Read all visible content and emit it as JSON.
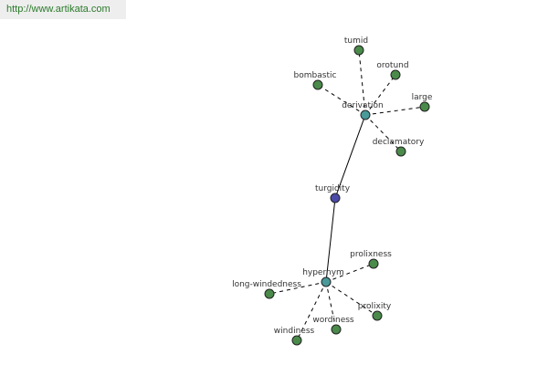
{
  "header": {
    "url": "http://www.artikata.com"
  },
  "nodes": [
    {
      "label": "turgidity"
    },
    {
      "label": "derivation"
    },
    {
      "label": "hypernym"
    },
    {
      "label": "tumid"
    },
    {
      "label": "orotund"
    },
    {
      "label": "large"
    },
    {
      "label": "declamatory"
    },
    {
      "label": "bombastic"
    },
    {
      "label": "prolixness"
    },
    {
      "label": "long-windedness"
    },
    {
      "label": "prolixity"
    },
    {
      "label": "wordiness"
    },
    {
      "label": "windiness"
    }
  ]
}
